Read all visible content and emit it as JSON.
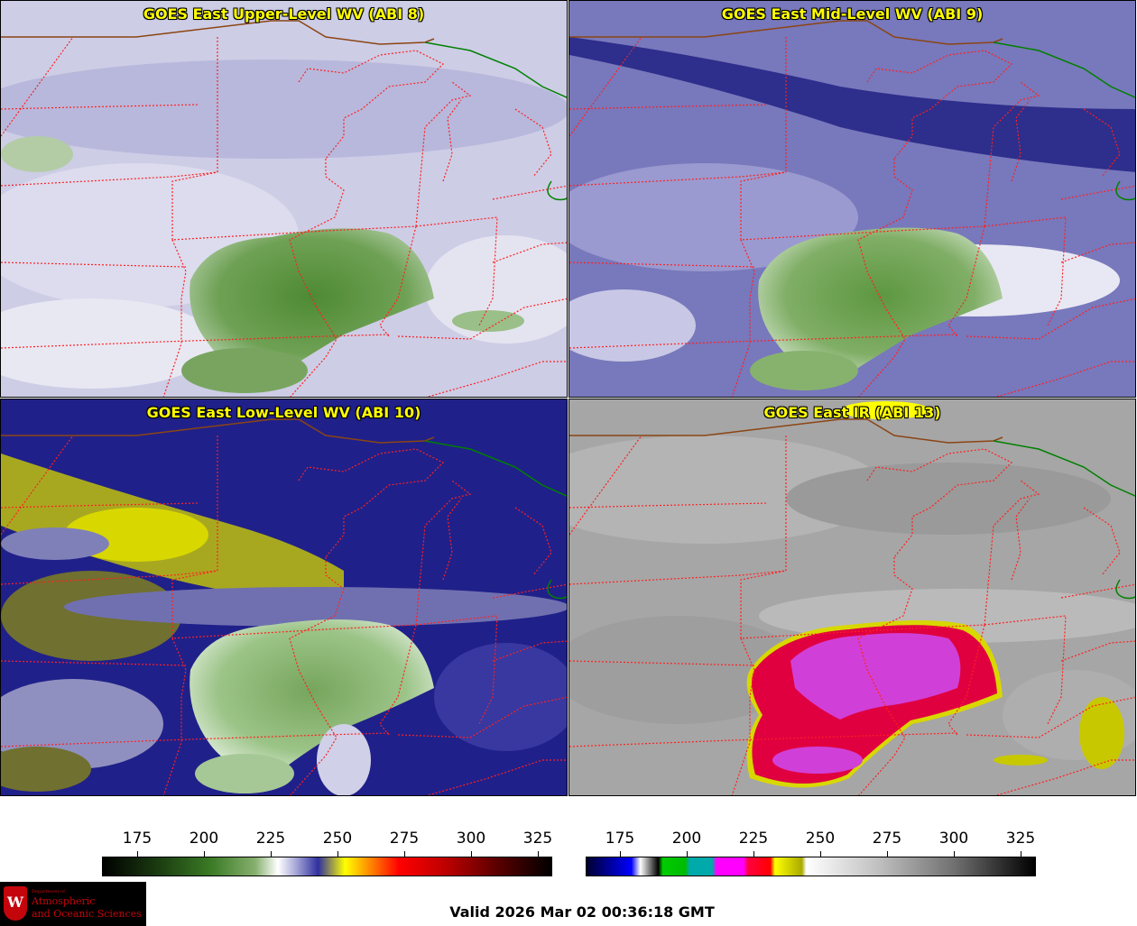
{
  "panels": {
    "upper": {
      "title": "GOES East Upper-Level WV (ABI 8)"
    },
    "mid": {
      "title": "GOES East Mid-Level WV (ABI 9)"
    },
    "low": {
      "title": "GOES East Low-Level WV (ABI 10)"
    },
    "ir": {
      "title": "GOES East IR (ABI 13)"
    }
  },
  "colorbars": {
    "wv": {
      "ticks": [
        "175",
        "200",
        "225",
        "250",
        "275",
        "300",
        "325"
      ]
    },
    "ir": {
      "ticks": [
        "175",
        "200",
        "225",
        "250",
        "275",
        "300",
        "325"
      ]
    }
  },
  "logo": {
    "crest_letter": "W",
    "small": "Department of",
    "line1": "Atmospheric",
    "line2": "and Oceanic Sciences"
  },
  "footer": {
    "valid": "Valid 2026 Mar 02 00:36:18 GMT"
  },
  "colors": {
    "title_text": "#ffff00",
    "state_borders": "#ff2020",
    "country_border": "#8b4513",
    "coast_green": "#008000",
    "uw_red": "#c5050c"
  }
}
